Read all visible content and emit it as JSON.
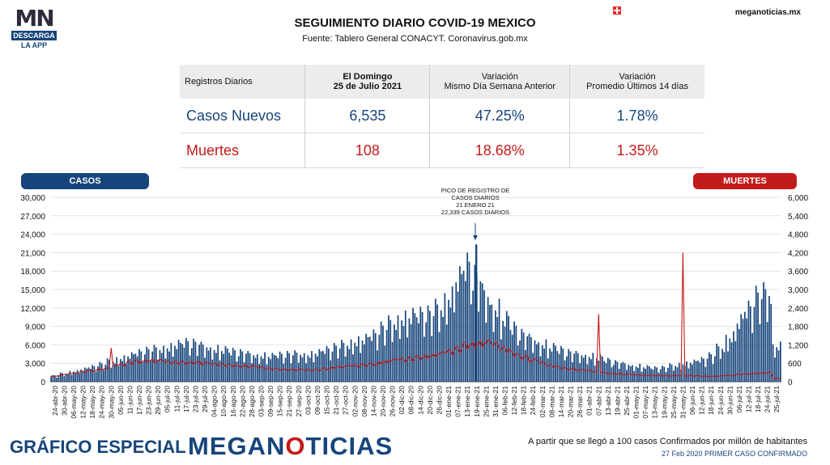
{
  "header": {
    "logo_mn": "MN",
    "logo_bar": "DESCARGA",
    "logo_sub": "LA APP",
    "title": "SEGUIMIENTO DIARIO COVID-19 MEXICO",
    "source": "Fuente: Tablero General CONACYT. Coronavirus.gob.mx",
    "site": "meganoticias.mx"
  },
  "summary": {
    "col0": "Registros Diarios",
    "col1_line1": "El Domingo",
    "col1_line2": "25 de Julio 2021",
    "col2_line1": "Variación",
    "col2_line2": "Mismo Día Semana Anterior",
    "col3_line1": "Variación",
    "col3_line2": "Promedio Últimos 14 días",
    "row1": {
      "label": "Casos Nuevos",
      "v1": "6,535",
      "v2": "47.25%",
      "v3": "1.78%"
    },
    "row2": {
      "label": "Muertes",
      "v1": "108",
      "v2": "18.68%",
      "v3": "1.35%"
    }
  },
  "legend": {
    "left": "CASOS",
    "right": "MUERTES"
  },
  "annotation": {
    "lines": [
      "PICO DE REGISTRO DE",
      "CASOS DIARIOS",
      "21 ENERO 21",
      "22,339 CASOS DIARIOS"
    ]
  },
  "footer": {
    "brand": "GRÁFICO ESPECIAL",
    "logo_a": "MEGAN",
    "logo_o": "O",
    "logo_b": "TICIAS",
    "note1": "A partir que se llegó a 100 casos Confirmados por millón de habitantes",
    "note2": "27 Feb 2020 PRIMER CASO CONFIRMADO"
  },
  "colors": {
    "casos": "#16457b",
    "muertes": "#c31a1a"
  },
  "chart_data": {
    "type": "bar",
    "title": "SEGUIMIENTO DIARIO COVID-19 MEXICO",
    "y_left_ticks": [
      "0",
      "3,000",
      "6,000",
      "9,000",
      "12,000",
      "15,000",
      "18,000",
      "21,000",
      "24,000",
      "27,000",
      "30,000"
    ],
    "y_right_ticks": [
      "0",
      "600",
      "1,200",
      "1,800",
      "2,400",
      "3,000",
      "3,600",
      "4,200",
      "4,800",
      "5,400",
      "6,000"
    ],
    "ylim_left": [
      0,
      30000
    ],
    "ylim_right": [
      0,
      6000
    ],
    "x_tick_labels": [
      "24-abr-20",
      "30-abr-20",
      "06-may-20",
      "12-may-20",
      "18-may-20",
      "24-may-20",
      "30-may-20",
      "05-jun-20",
      "11-jun-20",
      "17-jun-20",
      "23-jun-20",
      "29-jun-20",
      "05-jul-20",
      "11-jul-20",
      "17-jul-20",
      "23-jul-20",
      "29-jul-20",
      "04-ago-20",
      "10-ago-20",
      "16-ago-20",
      "22-ago-20",
      "28-ago-20",
      "03-sep-20",
      "09-sep-20",
      "15-sep-20",
      "21-sep-20",
      "27-sep-20",
      "03-oct-20",
      "09-oct-20",
      "15-oct-20",
      "21-oct-20",
      "27-oct-20",
      "02-nov-20",
      "08-nov-20",
      "14-nov-20",
      "20-nov-20",
      "26-nov-20",
      "02-dic-20",
      "08-dic-20",
      "14-dic-20",
      "20-dic-20",
      "26-dic-20",
      "01-ene-21",
      "07-ene-21",
      "13-ene-21",
      "19-ene-21",
      "25-ene-21",
      "31-ene-21",
      "06-feb-21",
      "12-feb-21",
      "18-feb-21",
      "24-feb-21",
      "02-mar-21",
      "08-mar-21",
      "14-mar-21",
      "20-mar-21",
      "26-mar-21",
      "01-abr-21",
      "07-abr-21",
      "13-abr-21",
      "19-abr-21",
      "25-abr-21",
      "01-may-21",
      "07-may-21",
      "13-may-21",
      "19-may-21",
      "25-may-21",
      "31-may-21",
      "06-jun-21",
      "12-jun-21",
      "18-jun-21",
      "24-jun-21",
      "30-jun-21",
      "06-jul-21",
      "12-jul-21",
      "18-jul-21",
      "24-jul-21",
      "25-jul-21"
    ],
    "series": [
      {
        "name": "CASOS",
        "type": "bar",
        "axis": "left",
        "period_values": [
          1100,
          1500,
          1900,
          2300,
          2700,
          3200,
          3800,
          4300,
          4800,
          5300,
          5700,
          6000,
          6300,
          6800,
          7100,
          7000,
          6500,
          6000,
          5800,
          5500,
          5300,
          5000,
          4800,
          4700,
          4900,
          5000,
          5100,
          5000,
          5300,
          5800,
          6300,
          6800,
          7400,
          7800,
          8500,
          9800,
          10800,
          11600,
          12000,
          12200,
          12400,
          13500,
          15500,
          18800,
          21000,
          19000,
          16000,
          13500,
          11500,
          9800,
          8600,
          7800,
          6900,
          6300,
          5800,
          5300,
          5000,
          4700,
          4400,
          3900,
          3500,
          3200,
          2900,
          2700,
          2500,
          2600,
          3000,
          3300,
          3600,
          4000,
          4800,
          6200,
          8200,
          11000,
          13200,
          15600,
          16200,
          6535
        ]
      },
      {
        "name": "MUERTES",
        "type": "line",
        "axis": "right",
        "period_values": [
          200,
          250,
          300,
          350,
          400,
          450,
          520,
          600,
          680,
          720,
          760,
          740,
          700,
          680,
          680,
          690,
          650,
          620,
          600,
          580,
          560,
          540,
          500,
          460,
          440,
          430,
          420,
          410,
          430,
          460,
          520,
          540,
          560,
          600,
          620,
          700,
          760,
          780,
          820,
          860,
          920,
          980,
          1050,
          1150,
          1300,
          1350,
          1380,
          1300,
          1150,
          1000,
          880,
          760,
          660,
          560,
          500,
          460,
          420,
          380,
          350,
          300,
          280,
          260,
          240,
          230,
          220,
          220,
          210,
          220,
          210,
          200,
          190,
          200,
          220,
          260,
          280,
          300,
          320,
          108
        ]
      }
    ],
    "extra_values": {
      "casos_peak": {
        "date": "21 ENERO 21",
        "value": 22339
      },
      "muertes_spikes": [
        {
          "near": "30-may-20",
          "value": 1100
        },
        {
          "near": "07-abr-21",
          "value": 2200
        },
        {
          "near": "31-may-21",
          "value": 4200
        }
      ]
    }
  }
}
